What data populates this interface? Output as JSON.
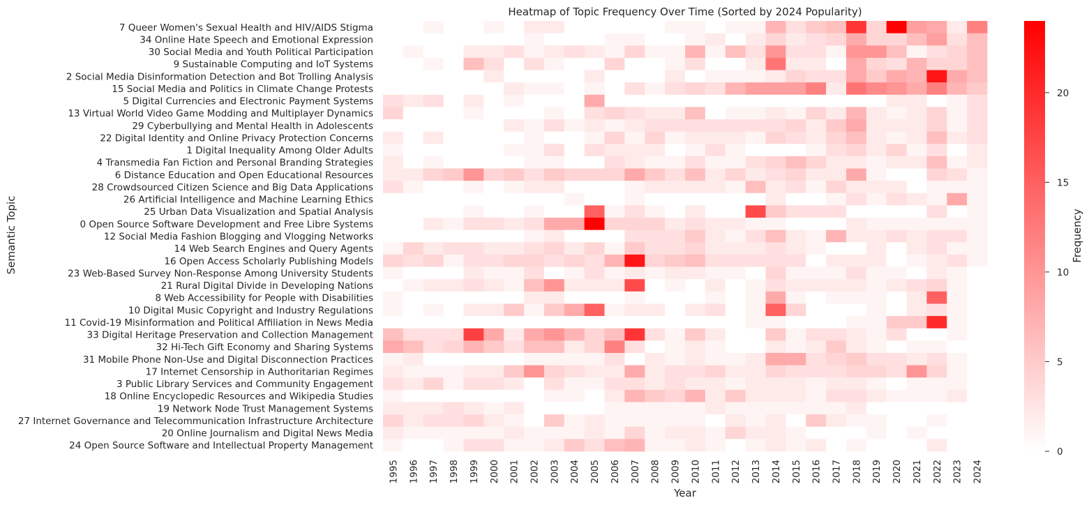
{
  "chart_data": {
    "type": "heatmap",
    "title": "Heatmap of Topic Frequency Over Time (Sorted by 2024 Popularity)",
    "xlabel": "Year",
    "ylabel": "Semantic Topic",
    "colorbar_label": "Frequency",
    "color_min": "#ffffff",
    "color_max": "#ff0000",
    "vmin": 0,
    "vmax": 24,
    "colorbar_ticks": [
      0,
      5,
      10,
      15,
      20
    ],
    "x": [
      "1995",
      "1996",
      "1997",
      "1998",
      "1999",
      "2000",
      "2001",
      "2002",
      "2003",
      "2004",
      "2005",
      "2006",
      "2007",
      "2008",
      "2009",
      "2010",
      "2011",
      "2012",
      "2013",
      "2014",
      "2015",
      "2016",
      "2017",
      "2018",
      "2019",
      "2020",
      "2021",
      "2022",
      "2023",
      "2024"
    ],
    "y": [
      "7 Queer Women's Sexual Health and HIV/AIDS Stigma",
      "34 Online Hate Speech and Emotional Expression",
      "30 Social Media and Youth Political Participation",
      "9 Sustainable Computing and IoT Systems",
      "2 Social Media Disinformation Detection and Bot Trolling Analysis",
      "15 Social Media and Politics in Climate Change Protests",
      "5 Digital Currencies and Electronic Payment Systems",
      "13 Virtual World Video Game Modding and Multiplayer Dynamics",
      "29 Cyberbullying and Mental Health in Adolescents",
      "22 Digital Identity and Online Privacy Protection Concerns",
      "1 Digital Inequality Among Older Adults",
      "4 Transmedia Fan Fiction and Personal Branding Strategies",
      "6 Distance Education and Open Educational Resources",
      "28 Crowdsourced Citizen Science and Big Data Applications",
      "26 Artificial Intelligence and Machine Learning Ethics",
      "25 Urban Data Visualization and Spatial Analysis",
      "0 Open Source Software Development and Free Libre Systems",
      "12 Social Media Fashion Blogging and Vlogging Networks",
      "14 Web Search Engines and Query Agents",
      "16 Open Access Scholarly Publishing Models",
      "23 Web-Based Survey Non-Response Among University Students",
      "21 Rural Digital Divide in Developing Nations",
      "8 Web Accessibility for People with Disabilities",
      "10 Digital Music Copyright and Industry Regulations",
      "11 Covid-19 Misinformation and Political Affiliation in News Media",
      "33 Digital Heritage Preservation and Collection Management",
      "32 Hi-Tech Gift Economy and Sharing Systems",
      "31 Mobile Phone Non-Use and Digital Disconnection Practices",
      "17 Internet Censorship in Authoritarian Regimes",
      "3 Public Library Services and Community Engagement",
      "18 Online Encyclopedic Resources and Wikipedia Studies",
      "19 Network Node Trust Management Systems",
      "27 Internet Governance and Telecommunication Infrastructure Architecture",
      "20 Online Journalism and Digital News Media",
      "24 Open Source Software and Intellectual Property Management"
    ],
    "values": [
      [
        0,
        0,
        1,
        0,
        0,
        1,
        0,
        2,
        2,
        0,
        0,
        0,
        0,
        0,
        1,
        1,
        0,
        1,
        1,
        7,
        3,
        5,
        6,
        19,
        4,
        24,
        9,
        8,
        2,
        12
      ],
      [
        0,
        0,
        0,
        0,
        0,
        0,
        0,
        1,
        0,
        0,
        0,
        1,
        1,
        0,
        0,
        1,
        2,
        0,
        2,
        4,
        2,
        3,
        4,
        8,
        4,
        4,
        6,
        9,
        3,
        6
      ],
      [
        0,
        1,
        0,
        0,
        2,
        2,
        3,
        1,
        2,
        3,
        2,
        1,
        4,
        1,
        1,
        7,
        1,
        6,
        3,
        10,
        3,
        3,
        1,
        10,
        10,
        6,
        1,
        3,
        4,
        6
      ],
      [
        0,
        0,
        1,
        0,
        6,
        3,
        0,
        3,
        1,
        0,
        0,
        4,
        0,
        0,
        1,
        3,
        0,
        0,
        2,
        13,
        2,
        2,
        0,
        8,
        4,
        3,
        7,
        4,
        4,
        6
      ],
      [
        0,
        0,
        0,
        0,
        0,
        2,
        0,
        0,
        0,
        0,
        2,
        0,
        0,
        0,
        2,
        0,
        1,
        1,
        1,
        2,
        4,
        3,
        3,
        8,
        5,
        8,
        7,
        22,
        8,
        6
      ],
      [
        0,
        0,
        0,
        0,
        0,
        0,
        2,
        1,
        1,
        0,
        1,
        0,
        3,
        1,
        3,
        4,
        3,
        7,
        9,
        9,
        9,
        12,
        2,
        13,
        11,
        10,
        8,
        12,
        7,
        5
      ],
      [
        3,
        2,
        3,
        0,
        2,
        0,
        1,
        0,
        0,
        0,
        8,
        0,
        0,
        0,
        0,
        0,
        0,
        0,
        0,
        0,
        0,
        0,
        0,
        0,
        0,
        2,
        2,
        0,
        1,
        3
      ],
      [
        4,
        0,
        0,
        0,
        1,
        0,
        0,
        0,
        1,
        0,
        3,
        4,
        3,
        2,
        2,
        6,
        0,
        1,
        1,
        2,
        1,
        4,
        2,
        7,
        2,
        1,
        2,
        4,
        1,
        3
      ],
      [
        0,
        0,
        0,
        0,
        0,
        0,
        2,
        1,
        3,
        1,
        2,
        1,
        2,
        3,
        3,
        3,
        3,
        3,
        3,
        3,
        4,
        2,
        5,
        8,
        2,
        2,
        2,
        4,
        1,
        3
      ],
      [
        2,
        0,
        2,
        0,
        0,
        0,
        0,
        1,
        0,
        0,
        1,
        4,
        1,
        4,
        1,
        2,
        2,
        2,
        1,
        4,
        3,
        2,
        4,
        6,
        2,
        1,
        2,
        6,
        2,
        3
      ],
      [
        1,
        0,
        0,
        0,
        0,
        0,
        1,
        1,
        3,
        0,
        3,
        2,
        2,
        2,
        0,
        1,
        3,
        1,
        0,
        0,
        0,
        1,
        3,
        4,
        2,
        4,
        1,
        3,
        0,
        2
      ],
      [
        2,
        0,
        1,
        0,
        0,
        0,
        0,
        1,
        1,
        0,
        0,
        3,
        2,
        1,
        1,
        3,
        1,
        1,
        3,
        4,
        6,
        4,
        2,
        2,
        1,
        2,
        2,
        6,
        1,
        2
      ],
      [
        2,
        2,
        4,
        5,
        10,
        4,
        5,
        3,
        5,
        4,
        4,
        4,
        8,
        5,
        3,
        6,
        2,
        4,
        2,
        3,
        4,
        2,
        2,
        8,
        1,
        0,
        0,
        4,
        3,
        1
      ],
      [
        3,
        1,
        0,
        0,
        1,
        0,
        1,
        2,
        2,
        0,
        0,
        0,
        1,
        2,
        2,
        2,
        2,
        1,
        6,
        2,
        3,
        1,
        4,
        2,
        2,
        2,
        0,
        1,
        1,
        1
      ],
      [
        0,
        0,
        0,
        0,
        0,
        0,
        0,
        0,
        0,
        1,
        0,
        0,
        1,
        0,
        0,
        0,
        0,
        0,
        0,
        2,
        0,
        0,
        1,
        3,
        1,
        3,
        2,
        1,
        8,
        1
      ],
      [
        0,
        0,
        0,
        0,
        1,
        0,
        0,
        1,
        0,
        0,
        15,
        1,
        3,
        1,
        0,
        2,
        0,
        0,
        17,
        5,
        3,
        3,
        3,
        0,
        0,
        0,
        0,
        3,
        0,
        1
      ],
      [
        0,
        0,
        2,
        1,
        3,
        3,
        2,
        3,
        8,
        8,
        24,
        4,
        4,
        4,
        2,
        3,
        2,
        2,
        1,
        1,
        0,
        0,
        0,
        2,
        1,
        1,
        1,
        1,
        1,
        1
      ],
      [
        0,
        0,
        0,
        0,
        0,
        0,
        0,
        1,
        2,
        0,
        0,
        0,
        3,
        3,
        3,
        5,
        2,
        1,
        3,
        6,
        2,
        1,
        7,
        2,
        2,
        3,
        2,
        3,
        3,
        1
      ],
      [
        1,
        4,
        2,
        3,
        3,
        2,
        2,
        3,
        4,
        2,
        4,
        1,
        5,
        3,
        3,
        4,
        2,
        2,
        2,
        3,
        2,
        1,
        0,
        0,
        2,
        0,
        2,
        3,
        1,
        1
      ],
      [
        4,
        3,
        4,
        1,
        3,
        3,
        4,
        4,
        3,
        4,
        3,
        7,
        22,
        4,
        5,
        6,
        3,
        3,
        3,
        3,
        3,
        0,
        2,
        2,
        2,
        0,
        1,
        2,
        3,
        1
      ],
      [
        1,
        0,
        0,
        0,
        2,
        1,
        1,
        3,
        0,
        1,
        3,
        1,
        2,
        1,
        2,
        2,
        1,
        1,
        0,
        4,
        1,
        1,
        1,
        3,
        1,
        1,
        0,
        2,
        1,
        0
      ],
      [
        0,
        1,
        2,
        2,
        3,
        2,
        1,
        6,
        10,
        2,
        2,
        2,
        17,
        0,
        1,
        0,
        2,
        0,
        1,
        3,
        2,
        2,
        2,
        2,
        1,
        2,
        3,
        4,
        1,
        0
      ],
      [
        1,
        0,
        0,
        0,
        0,
        0,
        0,
        2,
        2,
        0,
        0,
        0,
        1,
        0,
        0,
        0,
        1,
        0,
        1,
        8,
        1,
        0,
        1,
        1,
        1,
        0,
        2,
        15,
        1,
        0
      ],
      [
        1,
        0,
        1,
        0,
        2,
        2,
        5,
        1,
        5,
        8,
        15,
        1,
        2,
        2,
        0,
        2,
        3,
        0,
        1,
        15,
        4,
        0,
        0,
        0,
        1,
        0,
        2,
        3,
        1,
        0
      ],
      [
        0,
        0,
        0,
        0,
        0,
        0,
        0,
        0,
        0,
        0,
        0,
        0,
        0,
        0,
        0,
        0,
        0,
        0,
        1,
        1,
        0,
        0,
        0,
        1,
        1,
        5,
        5,
        20,
        1,
        0
      ],
      [
        6,
        3,
        3,
        3,
        18,
        8,
        2,
        8,
        10,
        7,
        4,
        6,
        19,
        3,
        1,
        5,
        2,
        0,
        0,
        5,
        1,
        3,
        3,
        2,
        1,
        3,
        0,
        0,
        1,
        0
      ],
      [
        8,
        6,
        3,
        4,
        7,
        5,
        3,
        6,
        6,
        2,
        4,
        12,
        3,
        0,
        1,
        2,
        1,
        0,
        0,
        2,
        1,
        2,
        5,
        2,
        1,
        0,
        1,
        1,
        0,
        0
      ],
      [
        1,
        2,
        0,
        0,
        0,
        0,
        0,
        1,
        1,
        1,
        1,
        3,
        0,
        2,
        1,
        2,
        1,
        1,
        2,
        8,
        8,
        3,
        4,
        5,
        3,
        3,
        2,
        3,
        1,
        0
      ],
      [
        2,
        1,
        1,
        1,
        2,
        2,
        5,
        10,
        4,
        3,
        2,
        2,
        8,
        2,
        3,
        3,
        4,
        2,
        2,
        4,
        3,
        3,
        3,
        4,
        4,
        3,
        10,
        4,
        1,
        0
      ],
      [
        3,
        2,
        4,
        1,
        3,
        3,
        2,
        0,
        3,
        1,
        1,
        3,
        3,
        2,
        3,
        2,
        2,
        1,
        2,
        2,
        2,
        1,
        2,
        2,
        1,
        0,
        1,
        1,
        1,
        0
      ],
      [
        1,
        0,
        0,
        0,
        0,
        0,
        0,
        0,
        1,
        1,
        0,
        2,
        7,
        5,
        4,
        7,
        2,
        5,
        2,
        2,
        2,
        1,
        3,
        3,
        2,
        1,
        1,
        1,
        2,
        0
      ],
      [
        2,
        2,
        2,
        3,
        2,
        1,
        2,
        0,
        0,
        0,
        0,
        1,
        1,
        1,
        1,
        1,
        2,
        1,
        1,
        1,
        1,
        1,
        1,
        2,
        0,
        0,
        0,
        0,
        0,
        0
      ],
      [
        4,
        2,
        3,
        3,
        4,
        2,
        1,
        0,
        5,
        1,
        2,
        1,
        1,
        1,
        1,
        1,
        0,
        2,
        1,
        2,
        0,
        5,
        2,
        1,
        1,
        0,
        0,
        1,
        0,
        0
      ],
      [
        2,
        1,
        1,
        1,
        1,
        1,
        2,
        1,
        1,
        1,
        2,
        1,
        4,
        1,
        2,
        2,
        1,
        4,
        2,
        2,
        1,
        0,
        0,
        0,
        1,
        0,
        1,
        0,
        0,
        0
      ],
      [
        1,
        0,
        0,
        1,
        3,
        3,
        1,
        1,
        2,
        5,
        3,
        6,
        7,
        1,
        1,
        2,
        1,
        0,
        1,
        2,
        1,
        2,
        0,
        1,
        0,
        0,
        0,
        2,
        0,
        0
      ]
    ]
  }
}
